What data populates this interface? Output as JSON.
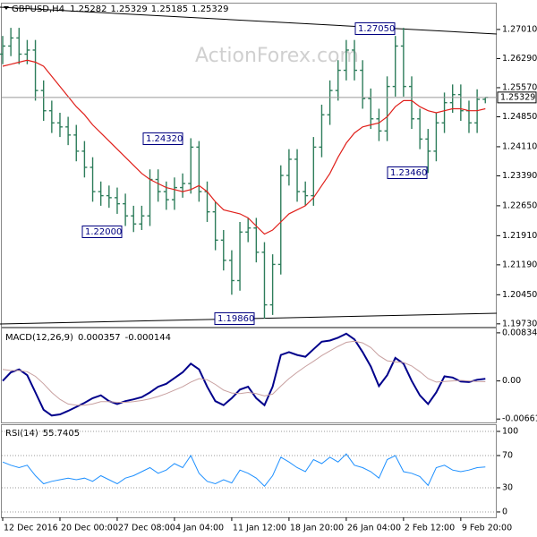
{
  "chart_data": [
    {
      "type": "ohlc",
      "title": "GBPUSD,H4",
      "watermark": "ActionForex.com",
      "color": "#2e7d5b",
      "categories": [
        "12 Dec 2016",
        null,
        null,
        null,
        null,
        null,
        null,
        "20 Dec 00:00",
        null,
        null,
        null,
        null,
        null,
        null,
        "27 Dec 08:00",
        null,
        null,
        null,
        null,
        null,
        null,
        "4 Jan 04:00",
        null,
        null,
        null,
        null,
        null,
        null,
        "11 Jan 12:00",
        null,
        null,
        null,
        null,
        null,
        null,
        "18 Jan 20:00",
        null,
        null,
        null,
        null,
        null,
        null,
        "26 Jan 04:00",
        null,
        null,
        null,
        null,
        null,
        null,
        "2 Feb 12:00",
        null,
        null,
        null,
        null,
        null,
        null,
        "9 Feb 20:00",
        null,
        null,
        null
      ],
      "open": [
        1.264,
        1.266,
        1.268,
        1.264,
        1.265,
        1.255,
        1.25,
        1.247,
        1.246,
        1.244,
        1.24,
        1.236,
        1.23,
        1.229,
        1.2285,
        1.227,
        1.224,
        1.222,
        1.224,
        1.233,
        1.23,
        1.228,
        1.231,
        1.232,
        1.241,
        1.23,
        1.225,
        1.218,
        1.213,
        1.208,
        1.22,
        1.221,
        1.215,
        1.202,
        1.212,
        1.234,
        1.238,
        1.23,
        1.229,
        1.241,
        1.249,
        1.255,
        1.26,
        1.265,
        1.26,
        1.253,
        1.248,
        1.245,
        1.256,
        1.266,
        1.256,
        1.248,
        1.243,
        1.24,
        1.247,
        1.252,
        1.254,
        1.25,
        1.247,
        1.25282
      ],
      "high": [
        1.2685,
        1.2705,
        1.2705,
        1.2675,
        1.2675,
        1.2575,
        1.2525,
        1.2495,
        1.2485,
        1.2465,
        1.2425,
        1.2385,
        1.2325,
        1.2315,
        1.231,
        1.2295,
        1.2265,
        1.2265,
        1.2355,
        1.2355,
        1.2325,
        1.2335,
        1.2345,
        1.2432,
        1.2425,
        1.2325,
        1.2275,
        1.2205,
        1.2155,
        1.2225,
        1.2235,
        1.2235,
        1.2175,
        1.2145,
        1.2365,
        1.2405,
        1.2405,
        1.2325,
        1.2435,
        1.2515,
        1.2575,
        1.2625,
        1.2675,
        1.2675,
        1.2625,
        1.2555,
        1.2505,
        1.2585,
        1.2685,
        1.2705,
        1.2585,
        1.2505,
        1.2455,
        1.2495,
        1.2545,
        1.2565,
        1.2565,
        1.2525,
        1.2553,
        1.25329
      ],
      "low": [
        1.2615,
        1.2635,
        1.2615,
        1.2615,
        1.2525,
        1.2475,
        1.2445,
        1.2435,
        1.2415,
        1.2375,
        1.2335,
        1.2275,
        1.2265,
        1.226,
        1.2245,
        1.2215,
        1.22,
        1.2205,
        1.2215,
        1.2275,
        1.2255,
        1.2255,
        1.2285,
        1.2295,
        1.2275,
        1.2225,
        1.2155,
        1.2105,
        1.2045,
        1.2055,
        1.2175,
        1.2125,
        1.1986,
        1.1995,
        1.2095,
        1.2315,
        1.2275,
        1.2265,
        1.2265,
        1.2385,
        1.2465,
        1.2525,
        1.2575,
        1.2575,
        1.2505,
        1.2455,
        1.2425,
        1.2425,
        1.2535,
        1.2535,
        1.2455,
        1.2405,
        1.2346,
        1.2375,
        1.2445,
        1.2495,
        1.2475,
        1.2445,
        1.2445,
        1.25185
      ],
      "close": [
        1.266,
        1.268,
        1.264,
        1.265,
        1.255,
        1.25,
        1.247,
        1.246,
        1.244,
        1.24,
        1.236,
        1.23,
        1.229,
        1.2285,
        1.227,
        1.224,
        1.222,
        1.224,
        1.233,
        1.23,
        1.228,
        1.231,
        1.232,
        1.241,
        1.23,
        1.225,
        1.218,
        1.213,
        1.208,
        1.22,
        1.221,
        1.215,
        1.202,
        1.212,
        1.234,
        1.238,
        1.23,
        1.229,
        1.241,
        1.249,
        1.255,
        1.26,
        1.265,
        1.26,
        1.253,
        1.248,
        1.245,
        1.256,
        1.266,
        1.256,
        1.248,
        1.243,
        1.24,
        1.247,
        1.252,
        1.254,
        1.25,
        1.247,
        1.25282,
        1.25329
      ],
      "ma": {
        "color": "#e0201b",
        "values": [
          1.261,
          1.2615,
          1.262,
          1.2625,
          1.262,
          1.261,
          1.2585,
          1.256,
          1.2535,
          1.251,
          1.249,
          1.2465,
          1.2445,
          1.2425,
          1.2405,
          1.2385,
          1.2365,
          1.2345,
          1.233,
          1.232,
          1.231,
          1.2305,
          1.23,
          1.2305,
          1.2315,
          1.23,
          1.2275,
          1.2255,
          1.225,
          1.2245,
          1.2235,
          1.2215,
          1.2195,
          1.2205,
          1.2225,
          1.2245,
          1.2255,
          1.2265,
          1.2285,
          1.2315,
          1.2345,
          1.2385,
          1.242,
          1.2445,
          1.246,
          1.2465,
          1.247,
          1.2485,
          1.251,
          1.2525,
          1.2525,
          1.251,
          1.25,
          1.2495,
          1.25,
          1.2505,
          1.2505,
          1.25,
          1.25,
          1.2505
        ]
      },
      "annotations": [
        "1.27050",
        "1.24320",
        "1.22000",
        "1.23460",
        "1.19860"
      ],
      "ylim": [
        1.1966,
        1.2765
      ],
      "yticks": [
        {
          "value": 1.2701,
          "label": "1.27010"
        },
        {
          "value": 1.2629,
          "label": "1.26290"
        },
        {
          "value": 1.2557,
          "label": "1.25570"
        },
        {
          "value": 1.2485,
          "label": "1.24850"
        },
        {
          "value": 1.2411,
          "label": "1.24110"
        },
        {
          "value": 1.2339,
          "label": "1.23390"
        },
        {
          "value": 1.2265,
          "label": "1.22650"
        },
        {
          "value": 1.2191,
          "label": "1.21910"
        },
        {
          "value": 1.2119,
          "label": "1.21190"
        },
        {
          "value": 1.2045,
          "label": "1.20450"
        },
        {
          "value": 1.1973,
          "label": "1.19730"
        }
      ],
      "grid": false
    },
    {
      "type": "line",
      "title": "MACD(12,26,9)",
      "series": [
        {
          "color": "#00008b",
          "width": 2,
          "values": [
            0,
            0.0015,
            0.002,
            0.001,
            -0.002,
            -0.005,
            -0.006,
            -0.0058,
            -0.0052,
            -0.0045,
            -0.0038,
            -0.003,
            -0.0025,
            -0.0035,
            -0.004,
            -0.0035,
            -0.0032,
            -0.0028,
            -0.002,
            -0.001,
            -0.0005,
            0.0005,
            0.0015,
            0.003,
            0.002,
            -0.001,
            -0.0035,
            -0.0042,
            -0.003,
            -0.0015,
            -0.001,
            -0.003,
            -0.0042,
            -0.001,
            0.0045,
            0.005,
            0.0045,
            0.0042,
            0.0055,
            0.0068,
            0.007,
            0.0075,
            0.0082,
            0.0072,
            0.005,
            0.0025,
            -0.0009,
            0.001,
            0.004,
            0.003,
            0,
            -0.0025,
            -0.004,
            -0.002,
            0.0008,
            0.0006,
            -0.0001,
            -0.0002,
            0.0002,
            0.000357
          ]
        },
        {
          "color": "#c8a0a0",
          "width": 1,
          "values": [
            0.002,
            0.0018,
            0.0018,
            0.0016,
            0.0008,
            -0.0005,
            -0.002,
            -0.0032,
            -0.004,
            -0.0042,
            -0.0042,
            -0.004,
            -0.0036,
            -0.0036,
            -0.0037,
            -0.0037,
            -0.0036,
            -0.0034,
            -0.0031,
            -0.0027,
            -0.0022,
            -0.0016,
            -0.001,
            -0.0002,
            0.0004,
            0.0002,
            -0.0006,
            -0.0016,
            -0.0021,
            -0.0022,
            -0.002,
            -0.0022,
            -0.0026,
            -0.0023,
            -0.0009,
            0.0004,
            0.0015,
            0.0025,
            0.0034,
            0.0044,
            0.0052,
            0.006,
            0.0067,
            0.0069,
            0.0066,
            0.0058,
            0.0044,
            0.0035,
            0.0033,
            0.0032,
            0.0026,
            0.0016,
            0.0004,
            -0.0002,
            -0.0001,
            0,
            0.0001,
            0,
            -0.0001,
            -0.000144
          ]
        }
      ],
      "ylim": [
        -0.0072,
        0.0091
      ],
      "yticks": [
        {
          "value": 0.008341,
          "label": "0.008341"
        },
        {
          "value": 0,
          "label": "0.00"
        },
        {
          "value": -0.00661,
          "label": "-0.00661"
        }
      ],
      "grid": false
    },
    {
      "type": "line",
      "title": "RSI(14)",
      "series": [
        {
          "color": "#1e90ff",
          "width": 1,
          "values": [
            62,
            58,
            55,
            58,
            45,
            35,
            38,
            40,
            42,
            40,
            42,
            38,
            45,
            40,
            35,
            42,
            45,
            50,
            55,
            48,
            52,
            60,
            55,
            70,
            48,
            38,
            35,
            40,
            36,
            52,
            48,
            42,
            32,
            45,
            68,
            62,
            55,
            50,
            65,
            60,
            68,
            62,
            72,
            58,
            55,
            50,
            42,
            65,
            70,
            50,
            48,
            44,
            33,
            55,
            58,
            52,
            50,
            52,
            55,
            55.7405
          ]
        }
      ],
      "ylim": [
        -6.7,
        107.8
      ],
      "yticks": [
        100,
        70,
        30,
        0
      ],
      "grid": true
    }
  ]
}
